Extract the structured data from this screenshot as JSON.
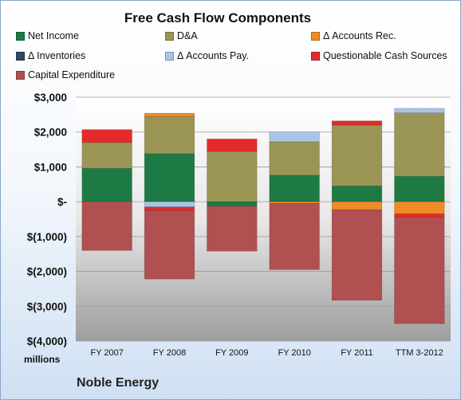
{
  "chart_data": {
    "type": "bar",
    "stacked": true,
    "title": "Free Cash Flow Components",
    "y_unit_label": "millions",
    "company": "Noble Energy",
    "categories": [
      "FY 2007",
      "FY 2008",
      "FY 2009",
      "FY 2010",
      "FY 2011",
      "TTM 3-2012"
    ],
    "ylim": [
      -4000,
      3000
    ],
    "yticks": [
      3000,
      2000,
      1000,
      0,
      -1000,
      -2000,
      -3000,
      -4000
    ],
    "ytick_labels": [
      "$3,000",
      "$2,000",
      "$1,000",
      "$-",
      "$(1,000)",
      "$(2,000)",
      "$(3,000)",
      "$(4,000)"
    ],
    "grid": true,
    "legend_position": "top",
    "series": [
      {
        "name": "Net Income",
        "color": "#1e7a45",
        "values": [
          960,
          1380,
          -130,
          760,
          450,
          730
        ]
      },
      {
        "name": "D&A",
        "color": "#9a9555",
        "values": [
          740,
          1060,
          1440,
          960,
          1750,
          1820
        ]
      },
      {
        "name": "Δ Accounts Rec.",
        "color": "#f08a25",
        "values": [
          0,
          100,
          0,
          -50,
          -230,
          -350
        ]
      },
      {
        "name": "Δ Inventories",
        "color": "#2c4a64",
        "values": [
          0,
          0,
          0,
          0,
          0,
          0
        ]
      },
      {
        "name": "Δ Accounts Pay.",
        "color": "#a9c5e6",
        "values": [
          0,
          -150,
          0,
          280,
          0,
          130
        ]
      },
      {
        "name": "Questionable Cash Sources",
        "color": "#e42a2a",
        "values": [
          370,
          -100,
          360,
          0,
          120,
          -100
        ]
      },
      {
        "name": "Capital Expenditure",
        "color": "#b05050",
        "values": [
          -1400,
          -1970,
          -1290,
          -1900,
          -2600,
          -3050
        ]
      }
    ]
  }
}
